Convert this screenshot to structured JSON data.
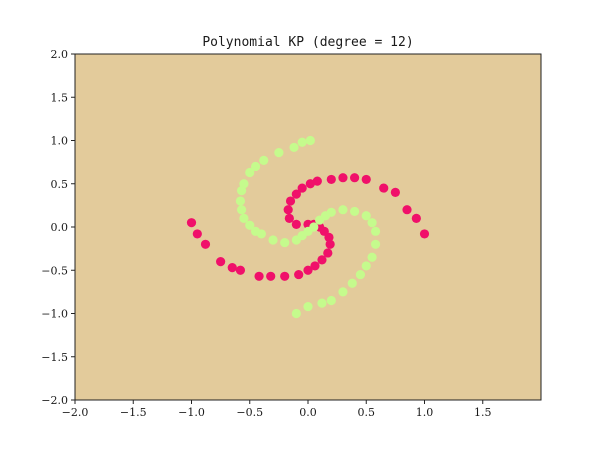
{
  "chart_data": {
    "type": "scatter",
    "title": "Polynomial KP (degree = 12)",
    "xlabel": "",
    "ylabel": "",
    "xlim": [
      -2.0,
      2.0
    ],
    "ylim": [
      -2.0,
      2.0
    ],
    "x_ticks": [
      -2.0,
      -1.5,
      -1.0,
      -0.5,
      0.0,
      0.5,
      1.0,
      1.5
    ],
    "x_tick_labels": [
      "−2.0",
      "−1.5",
      "−1.0",
      "−0.5",
      "0.0",
      "0.5",
      "1.0",
      "1.5"
    ],
    "y_ticks": [
      -2.0,
      -1.5,
      -1.0,
      -0.5,
      0.0,
      0.5,
      1.0,
      1.5,
      2.0
    ],
    "y_tick_labels": [
      "−2.0",
      "−1.5",
      "−1.0",
      "−0.5",
      "0.0",
      "0.5",
      "1.0",
      "1.5",
      "2.0"
    ],
    "grid": false,
    "background_color": "#e3cb9b",
    "series": [
      {
        "color": "#f0106a",
        "points": [
          [
            -1.0,
            0.05
          ],
          [
            -0.95,
            -0.08
          ],
          [
            -0.88,
            -0.2
          ],
          [
            -0.75,
            -0.4
          ],
          [
            -0.65,
            -0.47
          ],
          [
            -0.58,
            -0.5
          ],
          [
            -0.42,
            -0.57
          ],
          [
            -0.32,
            -0.57
          ],
          [
            -0.2,
            -0.57
          ],
          [
            -0.08,
            -0.55
          ],
          [
            0.0,
            -0.5
          ],
          [
            0.06,
            -0.45
          ],
          [
            0.12,
            -0.38
          ],
          [
            0.17,
            -0.3
          ],
          [
            0.19,
            -0.2
          ],
          [
            0.18,
            -0.12
          ],
          [
            0.14,
            -0.05
          ],
          [
            0.1,
            0.0
          ],
          [
            0.05,
            0.03
          ],
          [
            0.0,
            0.03
          ],
          [
            -0.1,
            0.03
          ],
          [
            -0.16,
            0.1
          ],
          [
            -0.17,
            0.2
          ],
          [
            -0.15,
            0.3
          ],
          [
            -0.1,
            0.38
          ],
          [
            -0.05,
            0.45
          ],
          [
            0.02,
            0.5
          ],
          [
            0.08,
            0.53
          ],
          [
            0.2,
            0.55
          ],
          [
            0.3,
            0.57
          ],
          [
            0.4,
            0.57
          ],
          [
            0.5,
            0.55
          ],
          [
            0.65,
            0.45
          ],
          [
            0.75,
            0.4
          ],
          [
            0.85,
            0.2
          ],
          [
            0.93,
            0.1
          ],
          [
            1.0,
            -0.08
          ]
        ]
      },
      {
        "color": "#c5fb8d",
        "points": [
          [
            0.02,
            1.0
          ],
          [
            -0.05,
            0.98
          ],
          [
            -0.12,
            0.92
          ],
          [
            -0.25,
            0.86
          ],
          [
            -0.38,
            0.77
          ],
          [
            -0.45,
            0.7
          ],
          [
            -0.5,
            0.63
          ],
          [
            -0.55,
            0.5
          ],
          [
            -0.57,
            0.42
          ],
          [
            -0.58,
            0.3
          ],
          [
            -0.57,
            0.2
          ],
          [
            -0.55,
            0.1
          ],
          [
            -0.5,
            0.02
          ],
          [
            -0.45,
            -0.05
          ],
          [
            -0.4,
            -0.08
          ],
          [
            -0.3,
            -0.15
          ],
          [
            -0.2,
            -0.18
          ],
          [
            -0.1,
            -0.15
          ],
          [
            -0.05,
            -0.1
          ],
          [
            0.0,
            -0.05
          ],
          [
            0.05,
            0.0
          ],
          [
            0.1,
            0.08
          ],
          [
            0.15,
            0.13
          ],
          [
            0.2,
            0.17
          ],
          [
            0.3,
            0.2
          ],
          [
            0.4,
            0.18
          ],
          [
            0.5,
            0.13
          ],
          [
            0.55,
            0.05
          ],
          [
            0.58,
            -0.05
          ],
          [
            0.58,
            -0.2
          ],
          [
            0.55,
            -0.35
          ],
          [
            0.5,
            -0.45
          ],
          [
            0.45,
            -0.55
          ],
          [
            0.38,
            -0.65
          ],
          [
            0.3,
            -0.75
          ],
          [
            0.2,
            -0.85
          ],
          [
            0.12,
            -0.88
          ],
          [
            0.0,
            -0.92
          ],
          [
            -0.1,
            -1.0
          ]
        ]
      }
    ]
  }
}
